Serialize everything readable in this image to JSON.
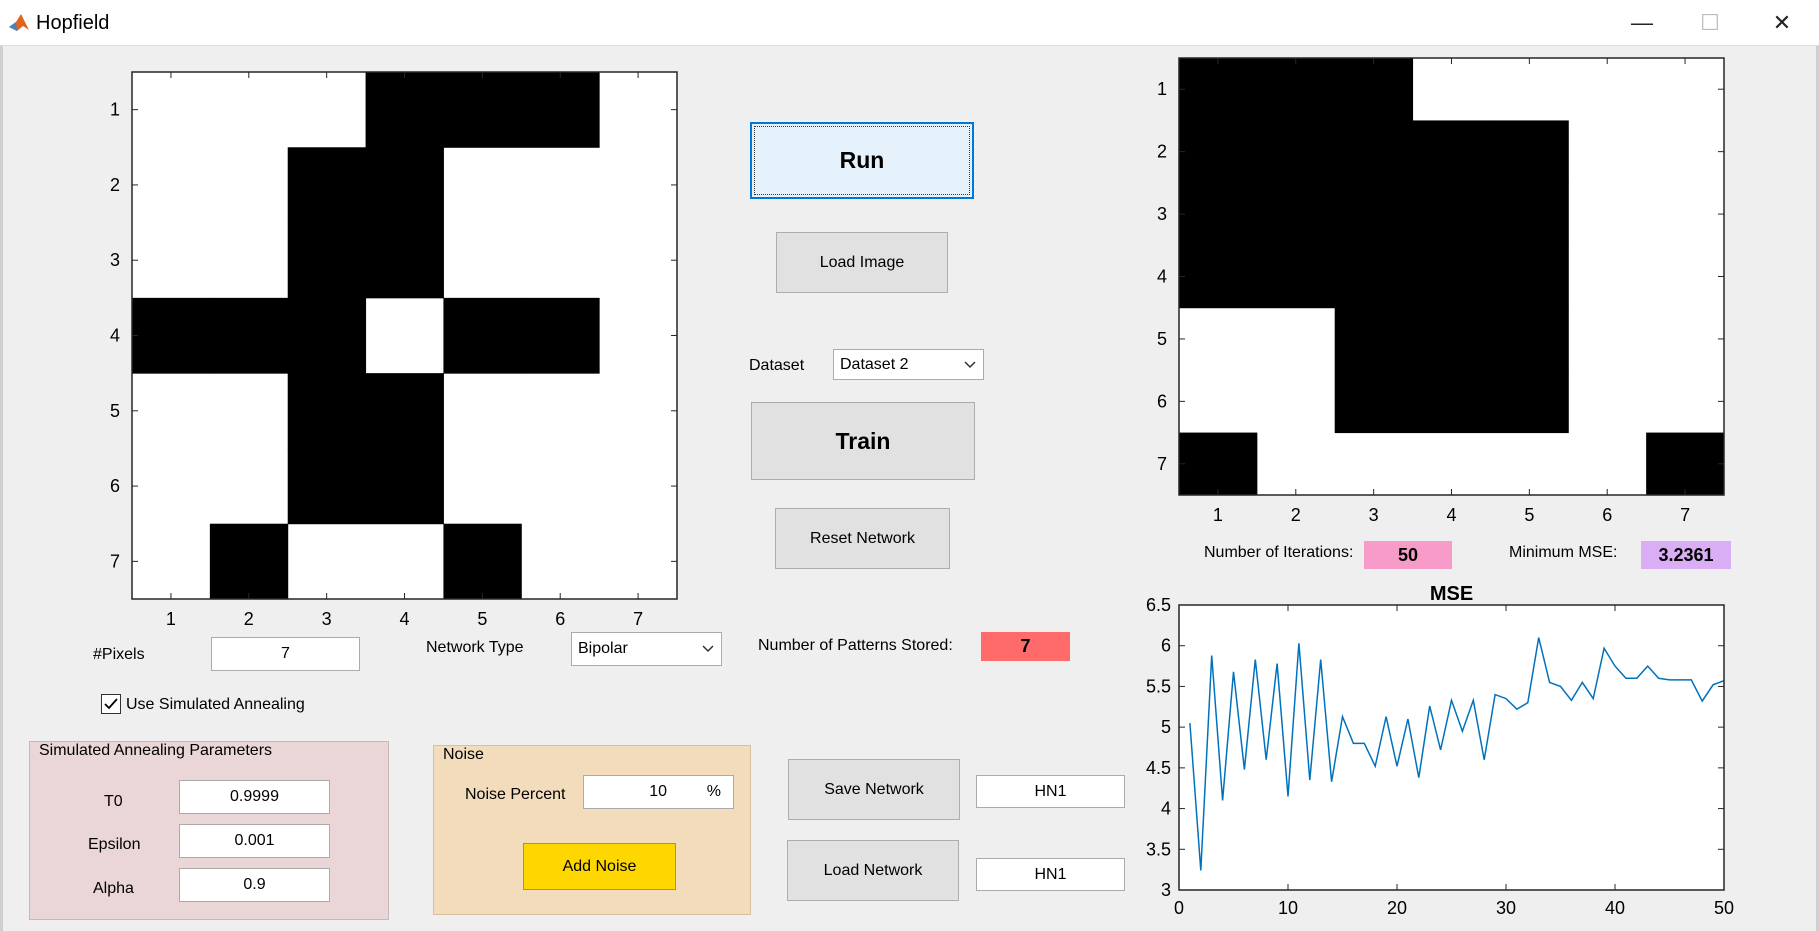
{
  "window": {
    "title": "Hopfield",
    "minimize": "—",
    "maximize": "☐",
    "close": "✕"
  },
  "buttons": {
    "run": "Run",
    "load_image": "Load Image",
    "train": "Train",
    "reset": "Reset Network",
    "save_network": "Save Network",
    "load_network": "Load Network",
    "add_noise": "Add Noise"
  },
  "dataset": {
    "label": "Dataset",
    "selected": "Dataset 2"
  },
  "pixels": {
    "label": "#Pixels",
    "value": "7"
  },
  "network_type": {
    "label": "Network Type",
    "selected": "Bipolar"
  },
  "patterns": {
    "label": "Number of Patterns Stored:",
    "value": "7"
  },
  "annealing": {
    "checkbox_label": "Use Simulated Annealing",
    "checked": true
  },
  "sa_params": {
    "title": "Simulated Annealing Parameters",
    "t0_label": "T0",
    "t0_value": "0.9999",
    "epsilon_label": "Epsilon",
    "epsilon_value": "0.001",
    "alpha_label": "Alpha",
    "alpha_value": "0.9"
  },
  "noise": {
    "title": "Noise",
    "percent_label": "Noise Percent",
    "percent_value": "10",
    "percent_unit": "%"
  },
  "save_name": "HN1",
  "load_name": "HN1",
  "iterations": {
    "label": "Number of Iterations:",
    "value": "50"
  },
  "min_mse": {
    "label": "Minimum MSE:",
    "value": "3.2361"
  },
  "colors": {
    "patterns_bg": "#ff6b6b",
    "iterations_bg": "#f79bc9",
    "mse_bg": "#d9aef5",
    "add_noise_bg": "#ffd700",
    "sa_panel_bg": "#ead6d6",
    "noise_panel_bg": "#f2dcbc",
    "line": "#0072bd"
  },
  "input_grid": {
    "ticks": [
      "1",
      "2",
      "3",
      "4",
      "5",
      "6",
      "7"
    ],
    "cells": [
      [
        0,
        0,
        0,
        1,
        1,
        1,
        0
      ],
      [
        0,
        0,
        1,
        1,
        0,
        0,
        0
      ],
      [
        0,
        0,
        1,
        1,
        0,
        0,
        0
      ],
      [
        1,
        1,
        1,
        0,
        1,
        1,
        0
      ],
      [
        0,
        0,
        1,
        1,
        0,
        0,
        0
      ],
      [
        0,
        0,
        1,
        1,
        0,
        0,
        0
      ],
      [
        0,
        1,
        0,
        0,
        1,
        0,
        0
      ]
    ]
  },
  "output_grid": {
    "ticks": [
      "1",
      "2",
      "3",
      "4",
      "5",
      "6",
      "7"
    ],
    "cells": [
      [
        1,
        1,
        1,
        0,
        0,
        0,
        0
      ],
      [
        1,
        1,
        1,
        1,
        1,
        0,
        0
      ],
      [
        1,
        1,
        1,
        1,
        1,
        0,
        0
      ],
      [
        1,
        1,
        1,
        1,
        1,
        0,
        0
      ],
      [
        0,
        0,
        1,
        1,
        1,
        0,
        0
      ],
      [
        0,
        0,
        1,
        1,
        1,
        0,
        0
      ],
      [
        1,
        0,
        0,
        0,
        0,
        0,
        1
      ]
    ]
  },
  "chart_data": {
    "type": "line",
    "title": "MSE",
    "xlabel": "",
    "ylabel": "",
    "xlim": [
      0,
      50
    ],
    "ylim": [
      3,
      6.5
    ],
    "xticks": [
      "0",
      "10",
      "20",
      "30",
      "40",
      "50"
    ],
    "yticks": [
      "3",
      "3.5",
      "4",
      "4.5",
      "5",
      "5.5",
      "6",
      "6.5"
    ],
    "x": [
      1,
      2,
      3,
      4,
      5,
      6,
      7,
      8,
      9,
      10,
      11,
      12,
      13,
      14,
      15,
      16,
      17,
      18,
      19,
      20,
      21,
      22,
      23,
      24,
      25,
      26,
      27,
      28,
      29,
      30,
      31,
      32,
      33,
      34,
      35,
      36,
      37,
      38,
      39,
      40,
      41,
      42,
      43,
      44,
      45,
      46,
      47,
      48,
      49,
      50
    ],
    "values": [
      5.05,
      3.24,
      5.88,
      4.1,
      5.68,
      4.48,
      5.83,
      4.6,
      5.78,
      4.15,
      6.03,
      4.35,
      5.83,
      4.33,
      5.13,
      4.8,
      4.8,
      4.52,
      5.13,
      4.52,
      5.1,
      4.38,
      5.26,
      4.72,
      5.33,
      4.95,
      5.33,
      4.6,
      5.4,
      5.35,
      5.22,
      5.3,
      6.1,
      5.55,
      5.5,
      5.33,
      5.55,
      5.35,
      5.97,
      5.75,
      5.6,
      5.6,
      5.75,
      5.6,
      5.58,
      5.58,
      5.58,
      5.32,
      5.52,
      5.57
    ]
  }
}
